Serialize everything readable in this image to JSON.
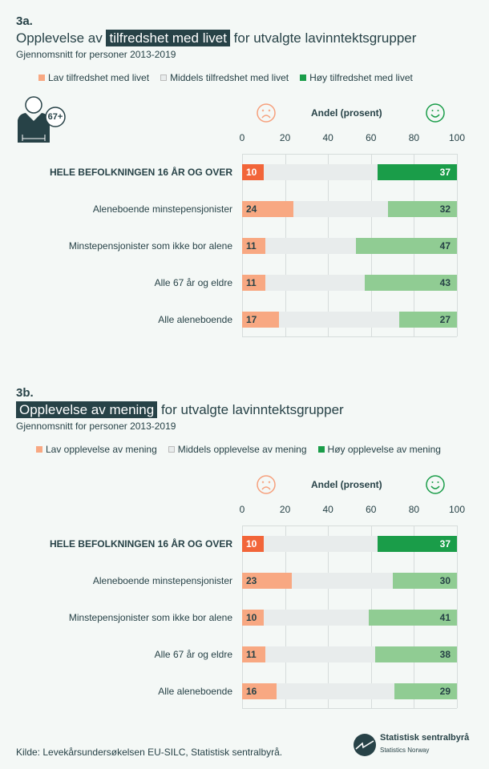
{
  "colors": {
    "low_strong": "#f26539",
    "low": "#f8a882",
    "mid": "#e8ecec",
    "high_strong": "#1a9d49",
    "high": "#90cc93",
    "dark": "#274247",
    "sad_icon": "#f6a07c",
    "happy_icon": "#1a9d49"
  },
  "icons": {
    "person": "person-67plus-icon",
    "sad": "sad-face-icon",
    "happy": "happy-face-icon",
    "logo": "ssb-logo-icon"
  },
  "chart_data": [
    {
      "type": "bar",
      "orientation": "horizontal",
      "stacked": true,
      "number": "3a.",
      "title_pre": "Opplevelse av",
      "title_highlight": "tilfredshet med livet",
      "title_post": "for utvalgte lavinntektsgrupper",
      "subtitle": "Gjennomsnitt for personer 2013-2019",
      "xlabel": "Andel (prosent)",
      "xlim": [
        0,
        100
      ],
      "ticks": [
        "0",
        "20",
        "40",
        "60",
        "80",
        "100"
      ],
      "grid": true,
      "legend_position": "top",
      "badge": "67+",
      "categories": [
        "HELE BEFOLKNINGEN 16 ÅR OG OVER",
        "Aleneboende minstepensjonister",
        "Minstepensjonister som ikke bor alene",
        "Alle 67 år og eldre",
        "Alle aleneboende"
      ],
      "series": [
        {
          "name": "Lav tilfredshet med livet",
          "values": [
            10,
            24,
            11,
            11,
            17
          ]
        },
        {
          "name": "Middels tilfredshet med livet",
          "values": [
            53,
            44,
            42,
            46,
            56
          ]
        },
        {
          "name": "Høy tilfredshet med livet",
          "values": [
            37,
            32,
            47,
            43,
            27
          ]
        }
      ]
    },
    {
      "type": "bar",
      "orientation": "horizontal",
      "stacked": true,
      "number": "3b.",
      "title_pre": "",
      "title_highlight": "Opplevelse av mening",
      "title_post": "for utvalgte lavinntektsgrupper",
      "subtitle": "Gjennomsnitt for personer 2013-2019",
      "xlabel": "Andel (prosent)",
      "xlim": [
        0,
        100
      ],
      "ticks": [
        "0",
        "20",
        "40",
        "60",
        "80",
        "100"
      ],
      "grid": true,
      "legend_position": "top",
      "categories": [
        "HELE BEFOLKNINGEN 16 ÅR OG OVER",
        "Aleneboende minstepensjonister",
        "Minstepensjonister som ikke bor alene",
        "Alle 67 år og eldre",
        "Alle aleneboende"
      ],
      "series": [
        {
          "name": "Lav opplevelse av mening",
          "values": [
            10,
            23,
            10,
            11,
            16
          ]
        },
        {
          "name": "Middels opplevelse av mening",
          "values": [
            53,
            47,
            49,
            51,
            55
          ]
        },
        {
          "name": "Høy opplevelse av mening",
          "values": [
            37,
            30,
            41,
            38,
            29
          ]
        }
      ]
    }
  ],
  "footer": {
    "source": "Kilde: Levekårsundersøkelsen EU-SILC, Statistisk sentralbyrå.",
    "logo_name": "Statistisk sentralbyrå",
    "logo_sub": "Statistics Norway"
  }
}
